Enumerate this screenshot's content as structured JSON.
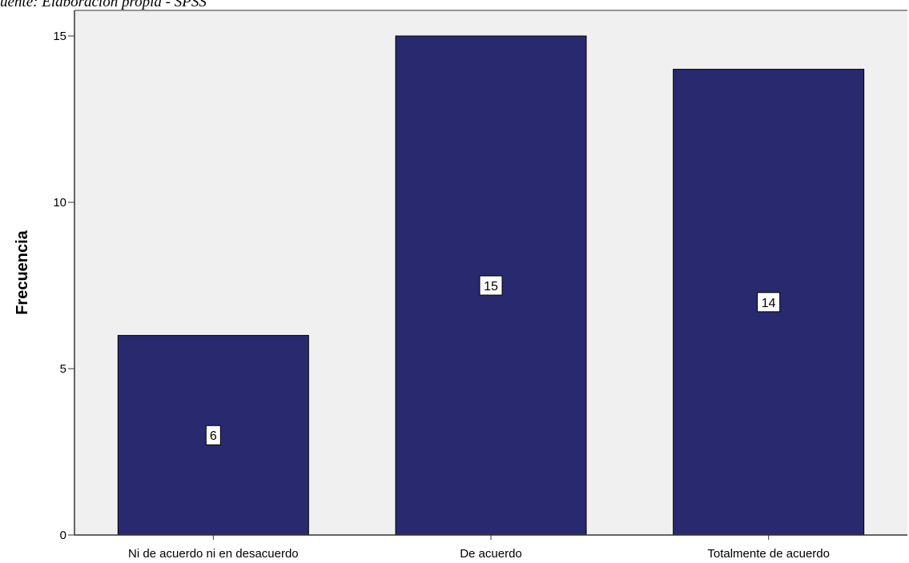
{
  "source_note": "uente: Elaboración propia - SPSS",
  "chart_data": {
    "type": "bar",
    "categories": [
      "Ni de acuerdo ni en desacuerdo",
      "De acuerdo",
      "Totalmente de acuerdo"
    ],
    "values": [
      6,
      15,
      14
    ],
    "data_labels": [
      "6",
      "15",
      "14"
    ],
    "title": "",
    "xlabel": "",
    "ylabel": "Frecuencia",
    "ylim": [
      0,
      15
    ],
    "yticks": [
      0,
      5,
      10,
      15
    ],
    "grid": false,
    "legend": "none",
    "colors": {
      "bar": "#29296f",
      "plot_background": "#f0f0f0",
      "axis": "#333333"
    }
  }
}
